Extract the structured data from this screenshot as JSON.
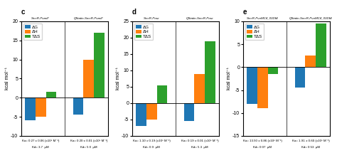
{
  "chart_data": [
    {
      "type": "bar",
      "title": "c",
      "categories": [
        "SmcR-PνasF",
        "QStatin-SmcR-PνasF"
      ],
      "series": [
        {
          "name": "ΔG",
          "values": [
            -6.0,
            -4.5
          ]
        },
        {
          "name": "ΔH",
          "values": [
            -5.0,
            10.0
          ]
        },
        {
          "name": "TΔS",
          "values": [
            1.5,
            17.0
          ]
        }
      ],
      "ylim": [
        -10,
        20
      ],
      "yticks": [
        -10,
        -5,
        0,
        5,
        10,
        15,
        20
      ],
      "ylabel": "kcal mol⁻¹",
      "annotations": [
        [
          "Ka= 0.27 ± 0.06 (x10⁶ M⁻¹)",
          "Kd= 3.7  μM"
        ],
        [
          "Ka= 0.20 ± 0.01 (x10⁶ M⁻¹)",
          "Kd= 5.0  μM"
        ]
      ],
      "legend": "upper left"
    },
    {
      "type": "bar",
      "title": "d",
      "categories": [
        "SmcR-Pσur",
        "QStatin-SmcR-Pσur"
      ],
      "series": [
        {
          "name": "ΔG",
          "values": [
            -7.0,
            -5.5
          ]
        },
        {
          "name": "ΔH",
          "values": [
            -5.0,
            9.0
          ]
        },
        {
          "name": "TΔS",
          "values": [
            5.5,
            19.0
          ]
        }
      ],
      "ylim": [
        -10,
        25
      ],
      "yticks": [
        -10,
        -5,
        0,
        5,
        10,
        15,
        20,
        25
      ],
      "ylabel": "kcal mol⁻¹",
      "annotations": [
        [
          "Ka= 1.10 ± 0.19 (x10⁶ M⁻¹)",
          "Kd= 0.9  μM"
        ],
        [
          "Ka= 0.19 ± 0.01 (x10⁶ M⁻¹)",
          "Kd= 5.3  μM"
        ]
      ],
      "legend": "upper left"
    },
    {
      "type": "bar",
      "title": "e",
      "categories": [
        "SmcR-PνσMCδ_03194",
        "QStatin-SmcR-PνσMCδ_03194"
      ],
      "series": [
        {
          "name": "ΔG",
          "values": [
            -8.0,
            -4.5
          ]
        },
        {
          "name": "ΔH",
          "values": [
            -9.0,
            2.5
          ]
        },
        {
          "name": "TΔS",
          "values": [
            -1.5,
            9.5
          ]
        }
      ],
      "ylim": [
        -15,
        10
      ],
      "yticks": [
        -15,
        -10,
        -5,
        0,
        5,
        10
      ],
      "ylabel": "kcal mol⁻¹",
      "annotations": [
        [
          "Ka= 13.50 ± 0.86 (x10⁶ M⁻¹)",
          "Kd= 0.07  μM"
        ],
        [
          "Ka= 1.91 ± 0.60 (x10⁶ M⁻¹)",
          "Kd= 0.53  μM"
        ]
      ],
      "legend": "upper left"
    }
  ]
}
